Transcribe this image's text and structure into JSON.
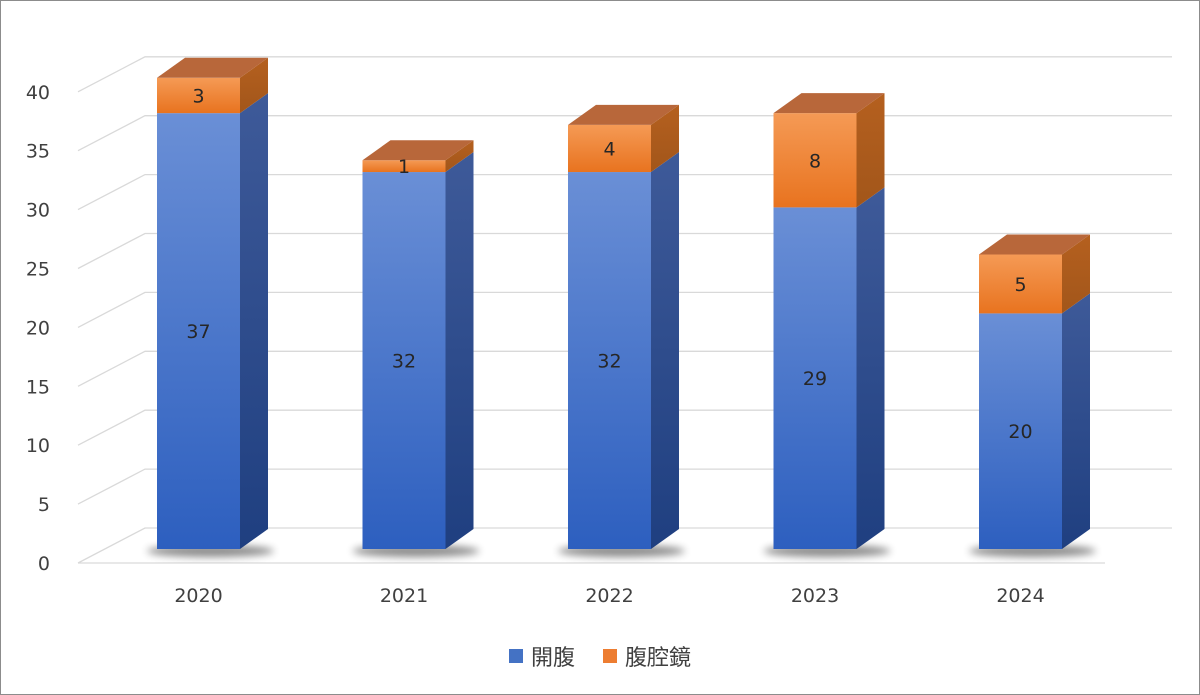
{
  "chart_data": {
    "type": "bar",
    "stacked": true,
    "style": "3d-column",
    "categories": [
      "2020",
      "2021",
      "2022",
      "2023",
      "2024"
    ],
    "series": [
      {
        "name": "開腹",
        "values": [
          37,
          32,
          32,
          29,
          20
        ],
        "color": "#4472C4"
      },
      {
        "name": "腹腔鏡",
        "values": [
          3,
          1,
          4,
          8,
          5
        ],
        "color": "#ED7D31"
      }
    ],
    "title": "",
    "xlabel": "",
    "ylabel": "",
    "ylim": [
      0,
      40
    ],
    "yticks": [
      "0",
      "5",
      "10",
      "15",
      "20",
      "25",
      "30",
      "35",
      "40"
    ],
    "grid": true,
    "legend": "bottom-center",
    "data_labels": true
  }
}
